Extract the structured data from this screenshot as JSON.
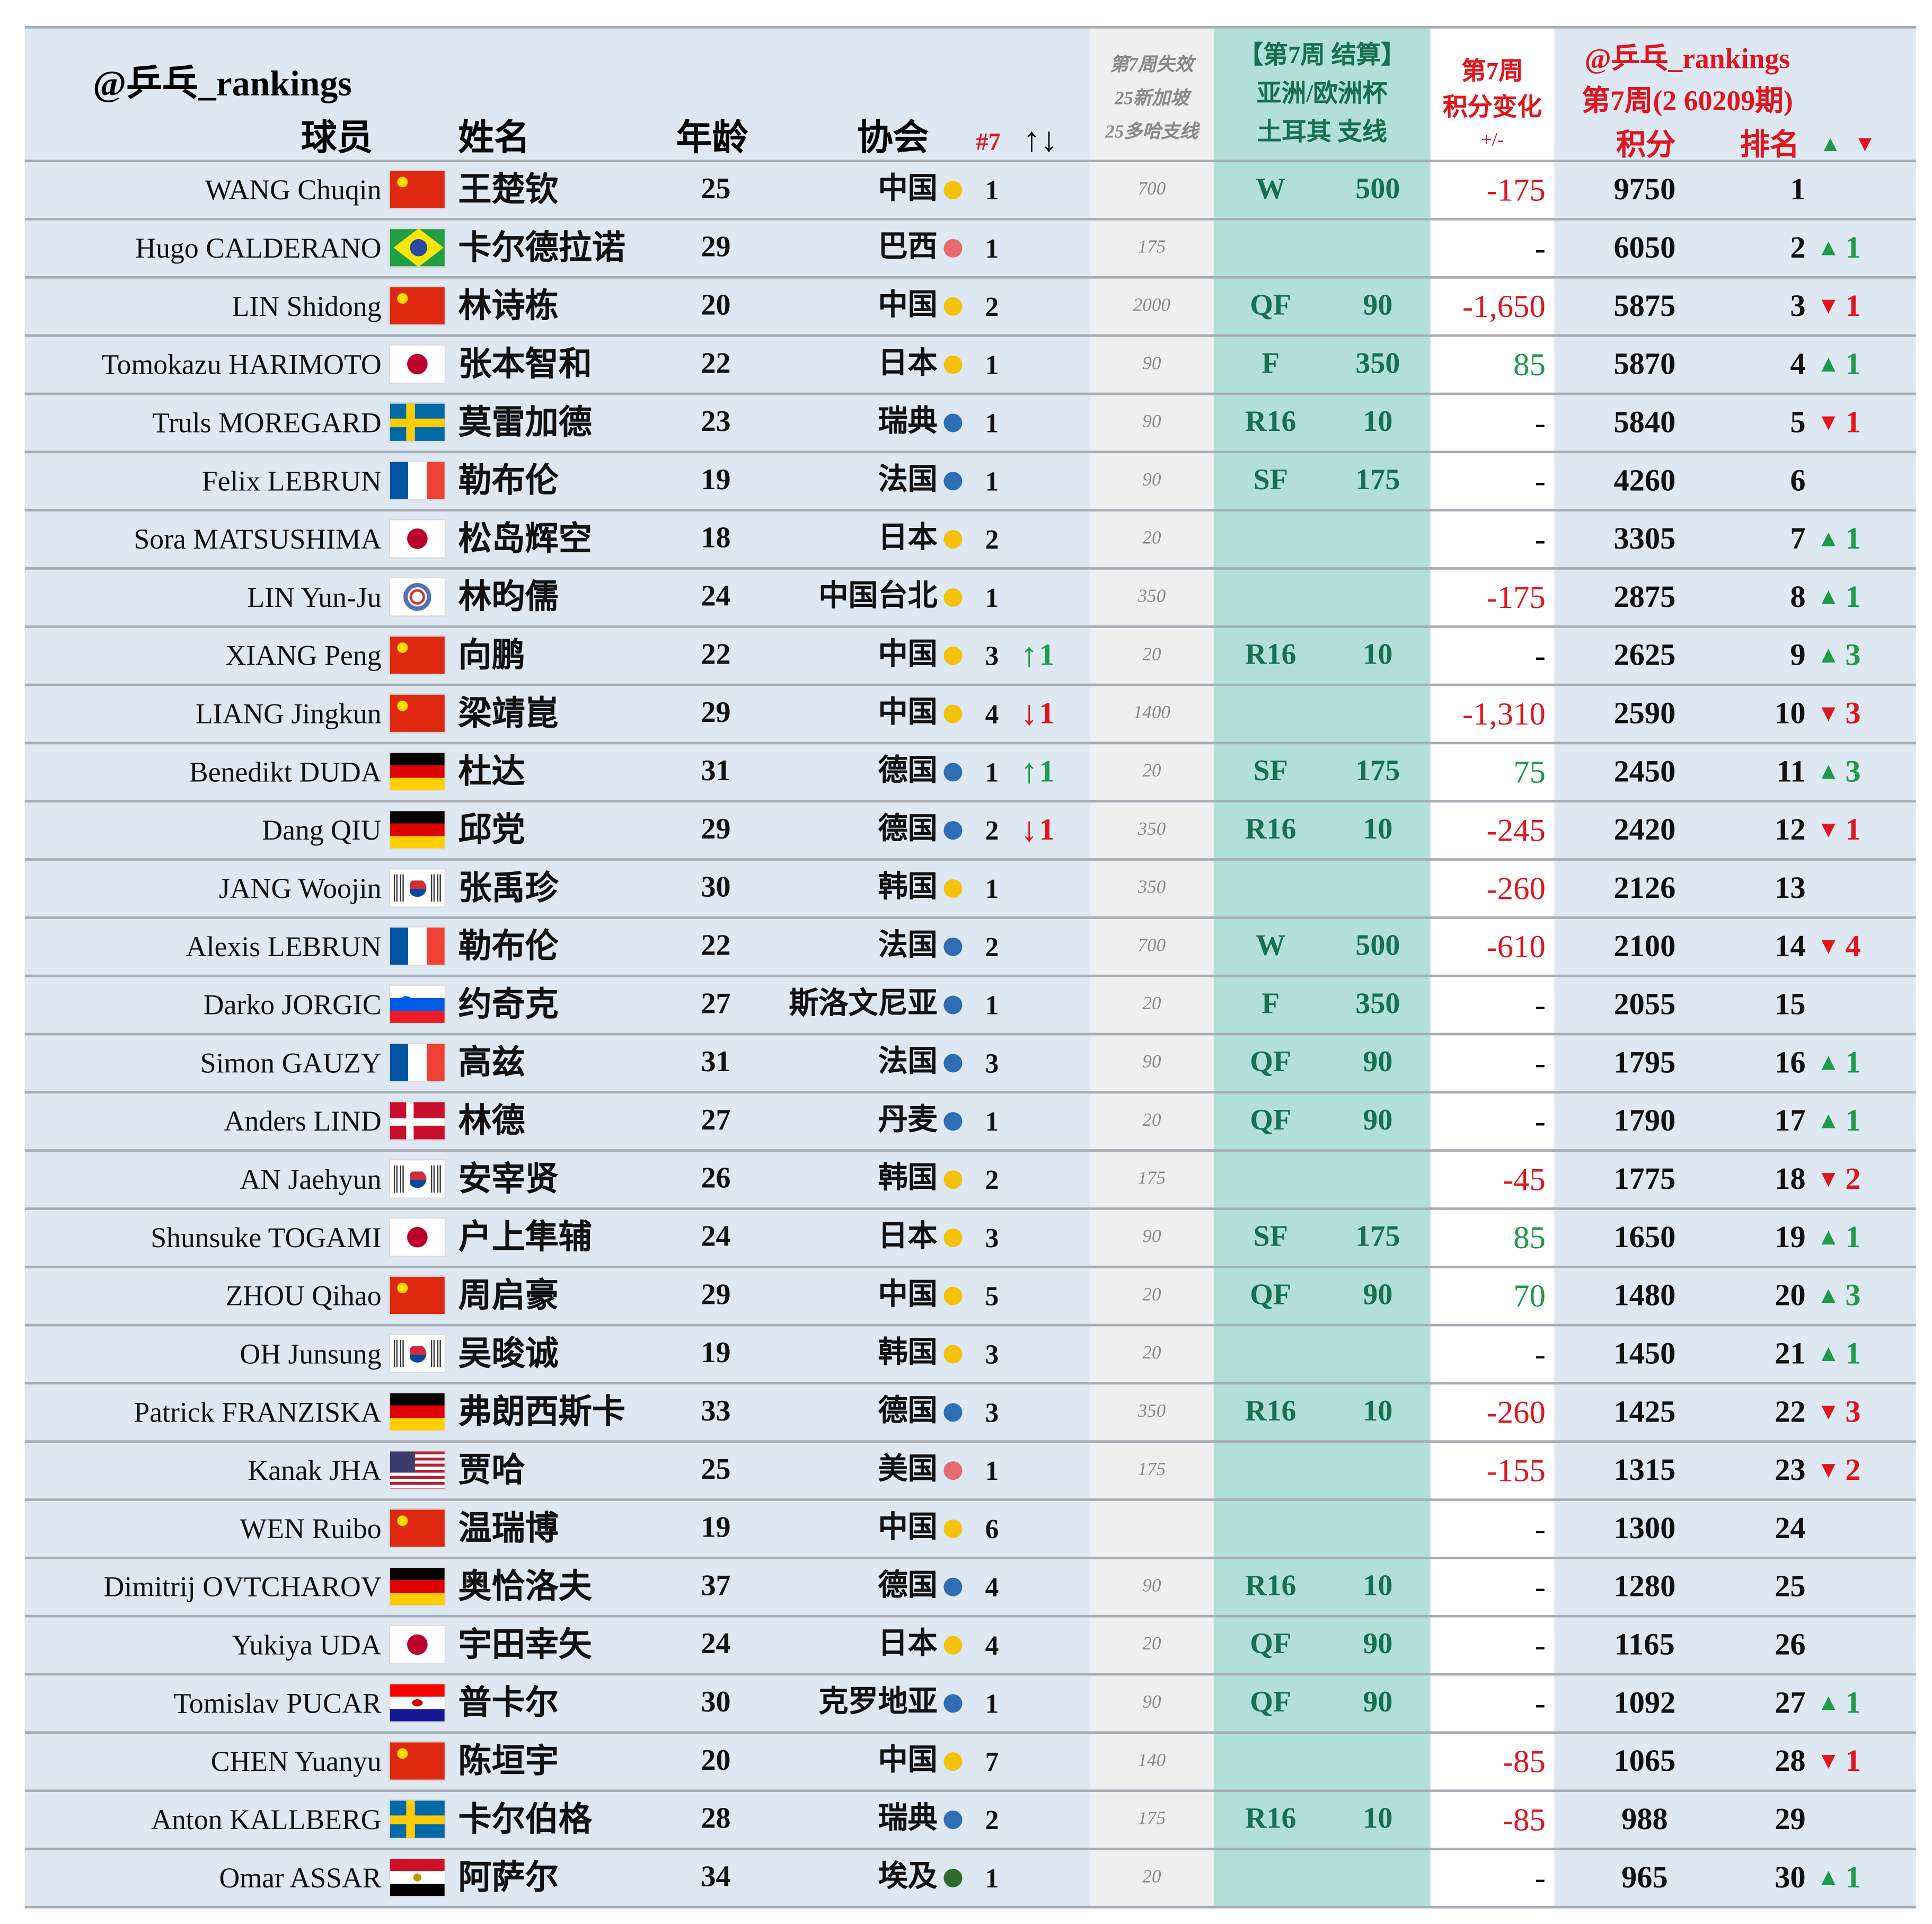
{
  "header": {
    "brand": "@乒乓_rankings",
    "player": "球员",
    "name": "姓名",
    "age": "年龄",
    "assoc": "协会",
    "assoc_rank": "#7",
    "assoc_arrows": "↑↓",
    "expiring": [
      "第7周失效",
      "25新加坡",
      "25多哈支线"
    ],
    "result": [
      "【第7周 结算】",
      "亚洲/欧洲杯",
      "土耳其 支线"
    ],
    "change": [
      "第7周",
      "积分变化",
      "+/-"
    ],
    "points_brand": "@乒乓_rankings",
    "points_period": "第7周(2 60209期)",
    "points": "积分",
    "rank": "排名",
    "rank_up": "▲",
    "rank_down": "▼"
  },
  "colors": {
    "up": "#1e9a48",
    "down": "#e0161e",
    "dot_asia": "#f4c20d",
    "dot_europe": "#2f6db5",
    "dot_america": "#e56b6f",
    "dot_africa": "#2e6b2e"
  },
  "table": {
    "rows": [
      {
        "en": "WANG Chuqin",
        "flag": "cn",
        "zh": "王楚钦",
        "age": 25,
        "assoc": "中国",
        "dot": "dot_asia",
        "assoc_rank": 1,
        "expiring": 700,
        "round": "W",
        "round_points": 500,
        "change": -175,
        "points": 9750,
        "rank": 1
      },
      {
        "en": "Hugo CALDERANO",
        "flag": "br",
        "zh": "卡尔德拉诺",
        "age": 29,
        "assoc": "巴西",
        "dot": "dot_america",
        "assoc_rank": 1,
        "expiring": 175,
        "change": "-",
        "points": 6050,
        "rank": 2,
        "rank_move": {
          "arrow": "▲",
          "value": 1
        }
      },
      {
        "en": "LIN Shidong",
        "flag": "cn",
        "zh": "林诗栋",
        "age": 20,
        "assoc": "中国",
        "dot": "dot_asia",
        "assoc_rank": 2,
        "expiring": 2000,
        "round": "QF",
        "round_points": 90,
        "change": "-1,650",
        "points": 5875,
        "rank": 3,
        "rank_move": {
          "arrow": "▼",
          "value": 1
        }
      },
      {
        "en": "Tomokazu HARIMOTO",
        "flag": "jp",
        "zh": "张本智和",
        "age": 22,
        "assoc": "日本",
        "dot": "dot_asia",
        "assoc_rank": 1,
        "expiring": 90,
        "round": "F",
        "round_points": 350,
        "change": 85,
        "points": 5870,
        "rank": 4,
        "rank_move": {
          "arrow": "▲",
          "value": 1
        }
      },
      {
        "en": "Truls MOREGARD",
        "flag": "se",
        "zh": "莫雷加德",
        "age": 23,
        "assoc": "瑞典",
        "dot": "dot_europe",
        "assoc_rank": 1,
        "expiring": 90,
        "round": "R16",
        "round_points": 10,
        "change": "-",
        "points": 5840,
        "rank": 5,
        "rank_move": {
          "arrow": "▼",
          "value": 1
        }
      },
      {
        "en": "Felix LEBRUN",
        "flag": "fr",
        "zh": "勒布伦",
        "age": 19,
        "assoc": "法国",
        "dot": "dot_europe",
        "assoc_rank": 1,
        "expiring": 90,
        "round": "SF",
        "round_points": 175,
        "change": "-",
        "points": 4260,
        "rank": 6
      },
      {
        "en": "Sora MATSUSHIMA",
        "flag": "jp",
        "zh": "松岛辉空",
        "age": 18,
        "assoc": "日本",
        "dot": "dot_asia",
        "assoc_rank": 2,
        "expiring": 20,
        "change": "-",
        "points": 3305,
        "rank": 7,
        "rank_move": {
          "arrow": "▲",
          "value": 1
        }
      },
      {
        "en": "LIN Yun-Ju",
        "flag": "tpe",
        "zh": "林昀儒",
        "age": 24,
        "assoc": "中国台北",
        "dot": "dot_asia",
        "assoc_rank": 1,
        "expiring": 350,
        "change": -175,
        "points": 2875,
        "rank": 8,
        "rank_move": {
          "arrow": "▲",
          "value": 1
        }
      },
      {
        "en": "XIANG Peng",
        "flag": "cn",
        "zh": "向鹏",
        "age": 22,
        "assoc": "中国",
        "dot": "dot_asia",
        "assoc_rank": 3,
        "assoc_move": {
          "arrow": "↑",
          "value": 1
        },
        "expiring": 20,
        "round": "R16",
        "round_points": 10,
        "change": "-",
        "points": 2625,
        "rank": 9,
        "rank_move": {
          "arrow": "▲",
          "value": 3
        }
      },
      {
        "en": "LIANG Jingkun",
        "flag": "cn",
        "zh": "梁靖崑",
        "age": 29,
        "assoc": "中国",
        "dot": "dot_asia",
        "assoc_rank": 4,
        "assoc_move": {
          "arrow": "↓",
          "value": 1
        },
        "expiring": 1400,
        "change": "-1,310",
        "points": 2590,
        "rank": 10,
        "rank_move": {
          "arrow": "▼",
          "value": 3
        }
      },
      {
        "en": "Benedikt DUDA",
        "flag": "de",
        "zh": "杜达",
        "age": 31,
        "assoc": "德国",
        "dot": "dot_europe",
        "assoc_rank": 1,
        "assoc_move": {
          "arrow": "↑",
          "value": 1
        },
        "expiring": 20,
        "round": "SF",
        "round_points": 175,
        "change": 75,
        "points": 2450,
        "rank": 11,
        "rank_move": {
          "arrow": "▲",
          "value": 3
        }
      },
      {
        "en": "Dang QIU",
        "flag": "de",
        "zh": "邱党",
        "age": 29,
        "assoc": "德国",
        "dot": "dot_europe",
        "assoc_rank": 2,
        "assoc_move": {
          "arrow": "↓",
          "value": 1
        },
        "expiring": 350,
        "round": "R16",
        "round_points": 10,
        "change": -245,
        "points": 2420,
        "rank": 12,
        "rank_move": {
          "arrow": "▼",
          "value": 1
        }
      },
      {
        "en": "JANG Woojin",
        "flag": "kr",
        "zh": "张禹珍",
        "age": 30,
        "assoc": "韩国",
        "dot": "dot_asia",
        "assoc_rank": 1,
        "expiring": 350,
        "change": -260,
        "points": 2126,
        "rank": 13
      },
      {
        "en": "Alexis LEBRUN",
        "flag": "fr",
        "zh": "勒布伦",
        "age": 22,
        "assoc": "法国",
        "dot": "dot_europe",
        "assoc_rank": 2,
        "expiring": 700,
        "round": "W",
        "round_points": 500,
        "change": -610,
        "points": 2100,
        "rank": 14,
        "rank_move": {
          "arrow": "▼",
          "value": 4
        }
      },
      {
        "en": "Darko JORGIC",
        "flag": "si",
        "zh": "约奇克",
        "age": 27,
        "assoc": "斯洛文尼亚",
        "dot": "dot_europe",
        "assoc_rank": 1,
        "expiring": 20,
        "round": "F",
        "round_points": 350,
        "change": "-",
        "points": 2055,
        "rank": 15
      },
      {
        "en": "Simon GAUZY",
        "flag": "fr",
        "zh": "高兹",
        "age": 31,
        "assoc": "法国",
        "dot": "dot_europe",
        "assoc_rank": 3,
        "expiring": 90,
        "round": "QF",
        "round_points": 90,
        "change": "-",
        "points": 1795,
        "rank": 16,
        "rank_move": {
          "arrow": "▲",
          "value": 1
        }
      },
      {
        "en": "Anders LIND",
        "flag": "dk",
        "zh": "林德",
        "age": 27,
        "assoc": "丹麦",
        "dot": "dot_europe",
        "assoc_rank": 1,
        "expiring": 20,
        "round": "QF",
        "round_points": 90,
        "change": "-",
        "points": 1790,
        "rank": 17,
        "rank_move": {
          "arrow": "▲",
          "value": 1
        }
      },
      {
        "en": "AN Jaehyun",
        "flag": "kr",
        "zh": "安宰贤",
        "age": 26,
        "assoc": "韩国",
        "dot": "dot_asia",
        "assoc_rank": 2,
        "expiring": 175,
        "change": -45,
        "points": 1775,
        "rank": 18,
        "rank_move": {
          "arrow": "▼",
          "value": 2
        }
      },
      {
        "en": "Shunsuke TOGAMI",
        "flag": "jp",
        "zh": "户上隼辅",
        "age": 24,
        "assoc": "日本",
        "dot": "dot_asia",
        "assoc_rank": 3,
        "expiring": 90,
        "round": "SF",
        "round_points": 175,
        "change": 85,
        "points": 1650,
        "rank": 19,
        "rank_move": {
          "arrow": "▲",
          "value": 1
        }
      },
      {
        "en": "ZHOU Qihao",
        "flag": "cn",
        "zh": "周启豪",
        "age": 29,
        "assoc": "中国",
        "dot": "dot_asia",
        "assoc_rank": 5,
        "expiring": 20,
        "round": "QF",
        "round_points": 90,
        "change": 70,
        "points": 1480,
        "rank": 20,
        "rank_move": {
          "arrow": "▲",
          "value": 3
        }
      },
      {
        "en": "OH Junsung",
        "flag": "kr",
        "zh": "吴晙诚",
        "age": 19,
        "assoc": "韩国",
        "dot": "dot_asia",
        "assoc_rank": 3,
        "expiring": 20,
        "change": "-",
        "points": 1450,
        "rank": 21,
        "rank_move": {
          "arrow": "▲",
          "value": 1
        }
      },
      {
        "en": "Patrick FRANZISKA",
        "flag": "de",
        "zh": "弗朗西斯卡",
        "age": 33,
        "assoc": "德国",
        "dot": "dot_europe",
        "assoc_rank": 3,
        "expiring": 350,
        "round": "R16",
        "round_points": 10,
        "change": -260,
        "points": 1425,
        "rank": 22,
        "rank_move": {
          "arrow": "▼",
          "value": 3
        }
      },
      {
        "en": "Kanak JHA",
        "flag": "us",
        "zh": "贾哈",
        "age": 25,
        "assoc": "美国",
        "dot": "dot_america",
        "assoc_rank": 1,
        "expiring": 175,
        "change": -155,
        "points": 1315,
        "rank": 23,
        "rank_move": {
          "arrow": "▼",
          "value": 2
        }
      },
      {
        "en": "WEN Ruibo",
        "flag": "cn",
        "zh": "温瑞博",
        "age": 19,
        "assoc": "中国",
        "dot": "dot_asia",
        "assoc_rank": 6,
        "change": "-",
        "points": 1300,
        "rank": 24
      },
      {
        "en": "Dimitrij OVTCHAROV",
        "flag": "de",
        "zh": "奥恰洛夫",
        "age": 37,
        "assoc": "德国",
        "dot": "dot_europe",
        "assoc_rank": 4,
        "expiring": 90,
        "round": "R16",
        "round_points": 10,
        "change": "-",
        "points": 1280,
        "rank": 25
      },
      {
        "en": "Yukiya UDA",
        "flag": "jp",
        "zh": "宇田幸矢",
        "age": 24,
        "assoc": "日本",
        "dot": "dot_asia",
        "assoc_rank": 4,
        "expiring": 20,
        "round": "QF",
        "round_points": 90,
        "change": "-",
        "points": 1165,
        "rank": 26
      },
      {
        "en": "Tomislav PUCAR",
        "flag": "hr",
        "zh": "普卡尔",
        "age": 30,
        "assoc": "克罗地亚",
        "dot": "dot_europe",
        "assoc_rank": 1,
        "expiring": 90,
        "round": "QF",
        "round_points": 90,
        "change": "-",
        "points": 1092,
        "rank": 27,
        "rank_move": {
          "arrow": "▲",
          "value": 1
        }
      },
      {
        "en": "CHEN Yuanyu",
        "flag": "cn",
        "zh": "陈垣宇",
        "age": 20,
        "assoc": "中国",
        "dot": "dot_asia",
        "assoc_rank": 7,
        "expiring": 140,
        "change": -85,
        "points": 1065,
        "rank": 28,
        "rank_move": {
          "arrow": "▼",
          "value": 1
        }
      },
      {
        "en": "Anton KALLBERG",
        "flag": "se",
        "zh": "卡尔伯格",
        "age": 28,
        "assoc": "瑞典",
        "dot": "dot_europe",
        "assoc_rank": 2,
        "expiring": 175,
        "round": "R16",
        "round_points": 10,
        "change": -85,
        "points": 988,
        "rank": 29
      },
      {
        "en": "Omar ASSAR",
        "flag": "eg",
        "zh": "阿萨尔",
        "age": 34,
        "assoc": "埃及",
        "dot": "dot_africa",
        "assoc_rank": 1,
        "expiring": 20,
        "change": "-",
        "points": 965,
        "rank": 30,
        "rank_move": {
          "arrow": "▲",
          "value": 1
        }
      }
    ]
  }
}
